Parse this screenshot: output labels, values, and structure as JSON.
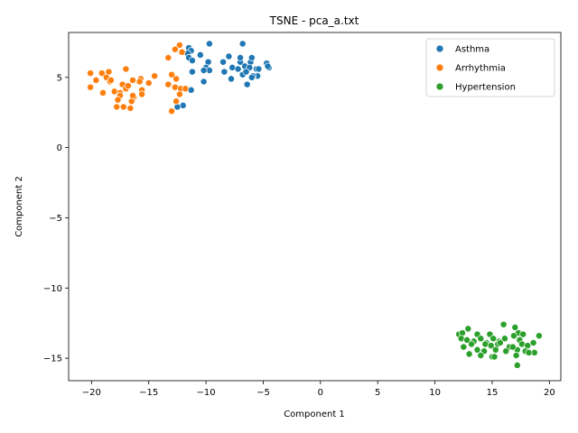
{
  "chart_data": {
    "type": "scatter",
    "title": "TSNE - pca_a.txt",
    "xlabel": "Component 1",
    "ylabel": "Component 2",
    "xlim": [
      -22,
      21
    ],
    "ylim": [
      -16.6,
      8.2
    ],
    "xticks": [
      -20,
      -15,
      -10,
      -5,
      0,
      5,
      10,
      15,
      20
    ],
    "yticks": [
      -15,
      -10,
      -5,
      0,
      5
    ],
    "grid": false,
    "legend_position": "top-right",
    "series": [
      {
        "name": "Asthma",
        "color": "#1f77b4",
        "points": [
          [
            -9.7,
            7.4
          ],
          [
            -6.8,
            7.4
          ],
          [
            -11.5,
            7.1
          ],
          [
            -11.3,
            6.9
          ],
          [
            -11.6,
            6.7
          ],
          [
            -10.5,
            6.6
          ],
          [
            -11.5,
            6.4
          ],
          [
            -11.2,
            6.2
          ],
          [
            -9.8,
            6.1
          ],
          [
            -8.5,
            6.1
          ],
          [
            -7.0,
            6.1
          ],
          [
            -6.1,
            6.1
          ],
          [
            -4.7,
            6.0
          ],
          [
            -8.0,
            6.5
          ],
          [
            -7.0,
            6.4
          ],
          [
            -6.0,
            6.4
          ],
          [
            -10.0,
            5.7
          ],
          [
            -9.7,
            5.5
          ],
          [
            -8.4,
            5.4
          ],
          [
            -7.7,
            5.7
          ],
          [
            -7.2,
            5.6
          ],
          [
            -6.6,
            5.8
          ],
          [
            -6.2,
            5.7
          ],
          [
            -5.6,
            5.6
          ],
          [
            -4.5,
            5.7
          ],
          [
            -10.2,
            5.5
          ],
          [
            -11.2,
            5.4
          ],
          [
            -7.8,
            4.9
          ],
          [
            -6.8,
            5.2
          ],
          [
            -6.5,
            5.4
          ],
          [
            -5.5,
            5.1
          ],
          [
            -5.9,
            5.1
          ],
          [
            -10.2,
            4.7
          ],
          [
            -6.4,
            4.5
          ],
          [
            -11.3,
            4.1
          ],
          [
            -12.0,
            3.0
          ],
          [
            -12.5,
            2.9
          ],
          [
            -5.4,
            5.6
          ],
          [
            -4.6,
            5.8
          ],
          [
            -6.0,
            5.0
          ]
        ]
      },
      {
        "name": "Arrhythmia",
        "color": "#ff7f0e",
        "points": [
          [
            -12.3,
            7.3
          ],
          [
            -12.7,
            7.0
          ],
          [
            -12.1,
            6.8
          ],
          [
            -13.3,
            6.4
          ],
          [
            -17.0,
            5.6
          ],
          [
            -20.1,
            5.3
          ],
          [
            -19.6,
            4.8
          ],
          [
            -19.1,
            5.3
          ],
          [
            -18.5,
            5.4
          ],
          [
            -18.7,
            5.0
          ],
          [
            -18.4,
            4.7
          ],
          [
            -16.4,
            4.8
          ],
          [
            -15.7,
            4.9
          ],
          [
            -15.8,
            4.7
          ],
          [
            -14.5,
            5.1
          ],
          [
            -15.0,
            4.6
          ],
          [
            -13.0,
            5.2
          ],
          [
            -12.6,
            4.9
          ],
          [
            -20.1,
            4.3
          ],
          [
            -19.0,
            3.9
          ],
          [
            -17.3,
            4.5
          ],
          [
            -17.0,
            4.2
          ],
          [
            -16.8,
            4.4
          ],
          [
            -18.0,
            4.0
          ],
          [
            -17.5,
            3.9
          ],
          [
            -17.5,
            3.7
          ],
          [
            -15.6,
            4.1
          ],
          [
            -15.6,
            3.8
          ],
          [
            -16.3,
            3.6
          ],
          [
            -16.5,
            3.3
          ],
          [
            -13.3,
            4.5
          ],
          [
            -12.7,
            4.3
          ],
          [
            -12.2,
            4.2
          ],
          [
            -11.8,
            4.2
          ],
          [
            -12.3,
            3.8
          ],
          [
            -12.6,
            3.3
          ],
          [
            -17.7,
            3.4
          ],
          [
            -17.8,
            2.9
          ],
          [
            -17.2,
            2.9
          ],
          [
            -16.6,
            2.8
          ],
          [
            -13.0,
            2.6
          ],
          [
            -16.4,
            3.7
          ],
          [
            -18.3,
            4.8
          ]
        ]
      },
      {
        "name": "Hypertension",
        "color": "#2ca02c",
        "points": [
          [
            16.0,
            -12.6
          ],
          [
            17.0,
            -12.8
          ],
          [
            12.9,
            -12.9
          ],
          [
            17.3,
            -13.2
          ],
          [
            12.1,
            -13.3
          ],
          [
            12.4,
            -13.2
          ],
          [
            13.7,
            -13.3
          ],
          [
            14.8,
            -13.3
          ],
          [
            15.6,
            -13.8
          ],
          [
            16.1,
            -13.6
          ],
          [
            16.9,
            -13.4
          ],
          [
            17.7,
            -13.3
          ],
          [
            19.1,
            -13.4
          ],
          [
            12.3,
            -13.6
          ],
          [
            12.8,
            -13.7
          ],
          [
            13.4,
            -13.8
          ],
          [
            14.0,
            -13.6
          ],
          [
            14.5,
            -13.9
          ],
          [
            15.1,
            -13.6
          ],
          [
            15.5,
            -14.0
          ],
          [
            16.5,
            -14.2
          ],
          [
            17.4,
            -13.7
          ],
          [
            18.6,
            -13.9
          ],
          [
            13.2,
            -14.0
          ],
          [
            14.4,
            -14.0
          ],
          [
            14.9,
            -14.1
          ],
          [
            15.7,
            -13.9
          ],
          [
            17.6,
            -14.0
          ],
          [
            18.1,
            -14.1
          ],
          [
            12.5,
            -14.2
          ],
          [
            13.7,
            -14.4
          ],
          [
            14.3,
            -14.5
          ],
          [
            15.3,
            -14.4
          ],
          [
            16.2,
            -14.5
          ],
          [
            17.2,
            -14.4
          ],
          [
            17.9,
            -14.5
          ],
          [
            18.7,
            -14.6
          ],
          [
            13.0,
            -14.7
          ],
          [
            14.0,
            -14.8
          ],
          [
            15.0,
            -14.9
          ],
          [
            17.1,
            -14.8
          ],
          [
            18.2,
            -14.6
          ],
          [
            16.8,
            -14.2
          ],
          [
            17.2,
            -15.5
          ],
          [
            15.2,
            -14.9
          ]
        ]
      }
    ]
  }
}
